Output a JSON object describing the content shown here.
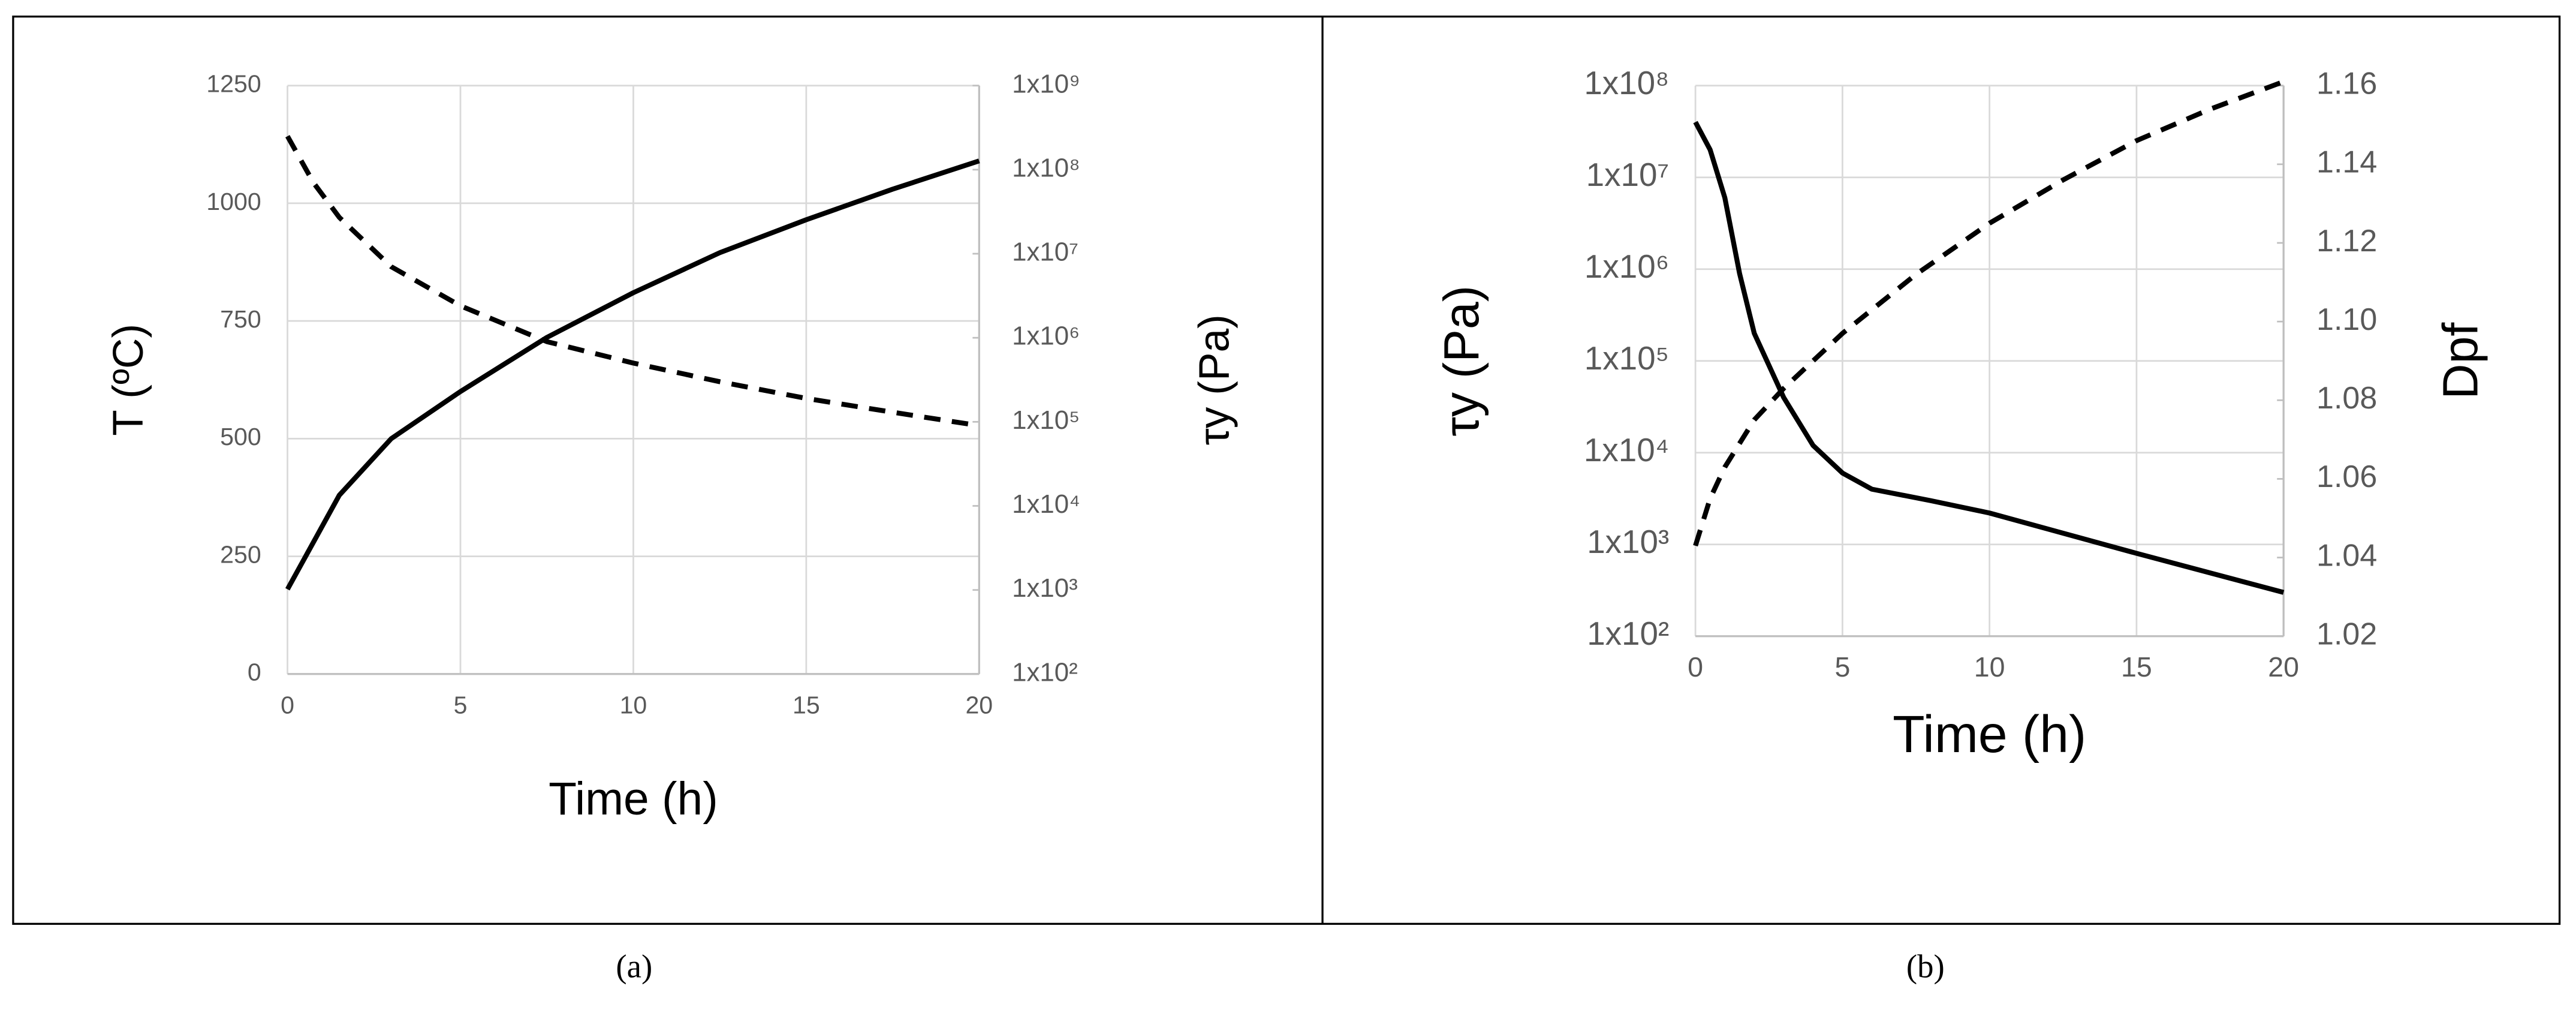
{
  "chart_data": [
    {
      "type": "line",
      "panel_label": "(a)",
      "x_label": "Time (h)",
      "y_label": "T (ºC)",
      "y2_label": "τy (Pa)",
      "xlim": [
        0,
        20
      ],
      "xticks": [
        0,
        5,
        10,
        15,
        20
      ],
      "ylim": [
        0,
        1250
      ],
      "yticks": [
        0,
        250,
        500,
        750,
        1000,
        1250
      ],
      "y2lim": [
        100,
        1000000000
      ],
      "y2_log": true,
      "y2ticks": [
        {
          "value": 100,
          "label": "1x10²"
        },
        {
          "value": 1000,
          "label": "1x10³"
        },
        {
          "value": 10000,
          "label": "1x10⁴"
        },
        {
          "value": 100000,
          "label": "1x10⁵"
        },
        {
          "value": 1000000,
          "label": "1x10⁶"
        },
        {
          "value": 10000000,
          "label": "1x10⁷"
        },
        {
          "value": 100000000,
          "label": "1x10⁸"
        },
        {
          "value": 1000000000,
          "label": "1x10⁹"
        }
      ],
      "grid": true,
      "series": [
        {
          "color": "#000000",
          "dashed": false,
          "axis": "y",
          "x": [
            0,
            1.5,
            3,
            5,
            7.5,
            10,
            12.5,
            15,
            17.5,
            20
          ],
          "values": [
            180,
            380,
            500,
            600,
            715,
            810,
            895,
            965,
            1030,
            1090
          ]
        },
        {
          "color": "#000000",
          "dashed": true,
          "axis": "y2",
          "x": [
            0,
            0.75,
            1.5,
            3,
            5,
            7.5,
            10,
            12.5,
            15,
            17.5,
            20
          ],
          "values": [
            250000000,
            70000000,
            27000000,
            7000000,
            2400000,
            900000,
            500000,
            300000,
            190000,
            130000,
            90000
          ]
        }
      ]
    },
    {
      "type": "line",
      "panel_label": "(b)",
      "x_label": "Time (h)",
      "y_label": "τy (Pa)",
      "y2_label": "Dpf",
      "xlim": [
        0,
        20
      ],
      "xticks": [
        0,
        5,
        10,
        15,
        20
      ],
      "ylim": [
        100,
        100000000
      ],
      "y_log": true,
      "yticks": [
        {
          "value": 100,
          "label": "1x10²"
        },
        {
          "value": 1000,
          "label": "1x10³"
        },
        {
          "value": 10000,
          "label": "1x10⁴"
        },
        {
          "value": 100000,
          "label": "1x10⁵"
        },
        {
          "value": 1000000,
          "label": "1x10⁶"
        },
        {
          "value": 10000000,
          "label": "1x10⁷"
        },
        {
          "value": 100000000,
          "label": "1x10⁸"
        }
      ],
      "y2lim": [
        1.02,
        1.16
      ],
      "y2ticks": [
        {
          "value": 1.02,
          "label": "1.02"
        },
        {
          "value": 1.04,
          "label": "1.04"
        },
        {
          "value": 1.06,
          "label": "1.06"
        },
        {
          "value": 1.08,
          "label": "1.08"
        },
        {
          "value": 1.1,
          "label": "1.10"
        },
        {
          "value": 1.12,
          "label": "1.12"
        },
        {
          "value": 1.14,
          "label": "1.14"
        },
        {
          "value": 1.16,
          "label": "1.16"
        }
      ],
      "grid": true,
      "series": [
        {
          "color": "#000000",
          "dashed": false,
          "axis": "y",
          "x": [
            0,
            0.5,
            1,
            1.5,
            2,
            3,
            4,
            5,
            6,
            8,
            10,
            15,
            20
          ],
          "values": [
            40000000,
            20000000,
            6000000,
            900000,
            200000,
            40000,
            12000,
            6000,
            4000,
            3000,
            2200,
            800,
            300
          ]
        },
        {
          "color": "#000000",
          "dashed": true,
          "axis": "y2",
          "x": [
            0,
            0.5,
            1,
            2,
            3,
            5,
            7.5,
            10,
            12.5,
            15,
            17.5,
            20
          ],
          "values": [
            1.043,
            1.055,
            1.063,
            1.075,
            1.083,
            1.097,
            1.112,
            1.125,
            1.136,
            1.146,
            1.154,
            1.161
          ]
        }
      ]
    }
  ]
}
